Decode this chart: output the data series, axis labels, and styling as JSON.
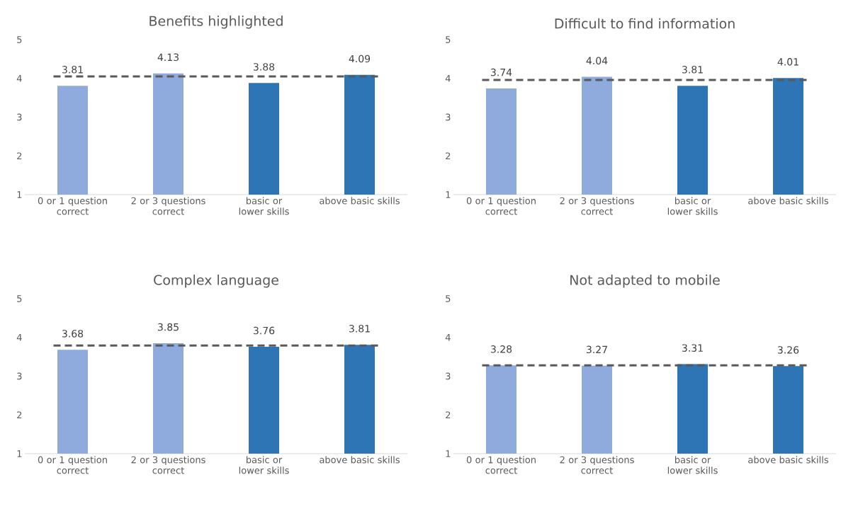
{
  "chart_data": [
    {
      "type": "bar",
      "title": "Benefits highlighted",
      "categories": [
        "0 or 1 question correct",
        "2 or 3 questions correct",
        "basic or lower skills",
        "above basic skills"
      ],
      "values": [
        3.81,
        4.13,
        3.88,
        4.09
      ],
      "colors": [
        "#8faadc",
        "#8faadc",
        "#2e75b6",
        "#2e75b6"
      ],
      "ylim": [
        1,
        5
      ],
      "yticks": [
        1,
        2,
        3,
        4,
        5
      ],
      "data_labels": true,
      "grid": false,
      "ref_lines": [
        {
          "axis": "y",
          "value": 4.05,
          "color": "#595959",
          "line_style": "dashed"
        }
      ]
    },
    {
      "type": "bar",
      "title": "Difficult to find information",
      "categories": [
        "0 or 1 question correct",
        "2 or 3 questions correct",
        "basic or lower skills",
        "above basic skills"
      ],
      "values": [
        3.74,
        4.04,
        3.81,
        4.01
      ],
      "colors": [
        "#8faadc",
        "#8faadc",
        "#2e75b6",
        "#2e75b6"
      ],
      "ylim": [
        1,
        5
      ],
      "yticks": [
        1,
        2,
        3,
        4,
        5
      ],
      "data_labels": true,
      "grid": false,
      "ref_lines": [
        {
          "axis": "y",
          "value": 3.96,
          "color": "#595959",
          "line_style": "dashed"
        }
      ]
    },
    {
      "type": "bar",
      "title": "Complex language",
      "categories": [
        "0 or 1 question correct",
        "2 or 3 questions correct",
        "basic or lower skills",
        "above basic skills"
      ],
      "values": [
        3.68,
        3.85,
        3.76,
        3.81
      ],
      "colors": [
        "#8faadc",
        "#8faadc",
        "#2e75b6",
        "#2e75b6"
      ],
      "ylim": [
        1,
        5
      ],
      "yticks": [
        1,
        2,
        3,
        4,
        5
      ],
      "data_labels": true,
      "grid": false,
      "ref_lines": [
        {
          "axis": "y",
          "value": 3.79,
          "color": "#595959",
          "line_style": "dashed"
        }
      ]
    },
    {
      "type": "bar",
      "title": "Not adapted to mobile",
      "categories": [
        "0 or 1 question correct",
        "2 or 3 questions correct",
        "basic or lower skills",
        "above basic skills"
      ],
      "values": [
        3.28,
        3.27,
        3.31,
        3.26
      ],
      "colors": [
        "#8faadc",
        "#8faadc",
        "#2e75b6",
        "#2e75b6"
      ],
      "ylim": [
        1,
        5
      ],
      "yticks": [
        1,
        2,
        3,
        4,
        5
      ],
      "data_labels": true,
      "grid": false,
      "ref_lines": [
        {
          "axis": "y",
          "value": 3.28,
          "color": "#595959",
          "line_style": "dashed"
        }
      ]
    }
  ]
}
